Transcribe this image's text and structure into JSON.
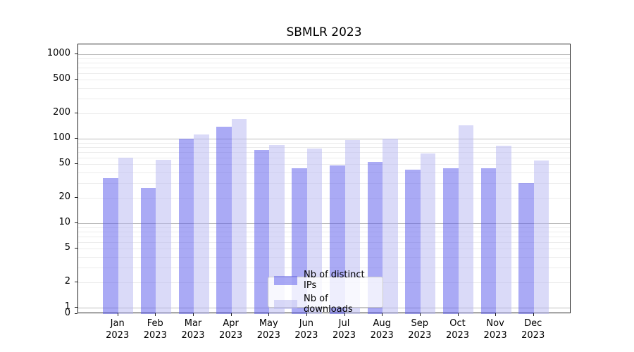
{
  "title": "SBMLR 2023",
  "colors": {
    "ips_bar": "rgba(85,85,235,0.5)",
    "downloads_bar": "rgba(181,181,241,0.5)",
    "grid_major": "#bcbcbc",
    "grid_minor": "#ececec",
    "axis_frame": "#222222",
    "legend_border": "#cccccc"
  },
  "legend": {
    "items": [
      {
        "label": "Nb of distinct IPs",
        "series": "ips"
      },
      {
        "label": "Nb of downloads",
        "series": "downloads"
      }
    ]
  },
  "chart_data": {
    "type": "bar",
    "title": "SBMLR 2023",
    "categories": [
      "Jan 2023",
      "Feb 2023",
      "Mar 2023",
      "Apr 2023",
      "May 2023",
      "Jun 2023",
      "Jul 2023",
      "Aug 2023",
      "Sep 2023",
      "Oct 2023",
      "Nov 2023",
      "Dec 2023"
    ],
    "x_tick_months": [
      "Jan",
      "Feb",
      "Mar",
      "Apr",
      "May",
      "Jun",
      "Jul",
      "Aug",
      "Sep",
      "Oct",
      "Nov",
      "Dec"
    ],
    "x_tick_year": "2023",
    "series": [
      {
        "name": "Nb of distinct IPs",
        "values": [
          34,
          26,
          100,
          139,
          73,
          45,
          48,
          53,
          43,
          45,
          45,
          30
        ]
      },
      {
        "name": "Nb of downloads",
        "values": [
          60,
          56,
          113,
          172,
          84,
          77,
          97,
          101,
          67,
          145,
          83,
          55
        ]
      }
    ],
    "yscale": "symlog",
    "yticks": [
      1000,
      500,
      200,
      100,
      50,
      20,
      10,
      5,
      2,
      1,
      0
    ],
    "ylim": [
      0,
      1300
    ],
    "grid": true,
    "legend_position": "lower center"
  }
}
